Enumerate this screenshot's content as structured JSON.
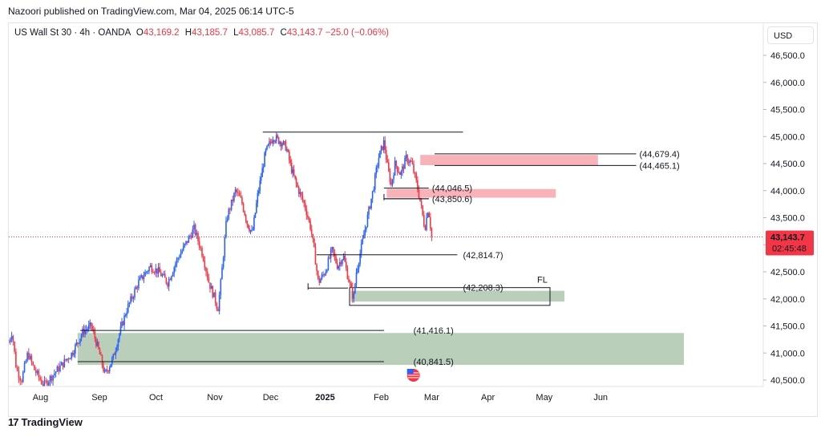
{
  "header": {
    "publisher": "Nazoori published on TradingView.com, Mar 04, 2025 06:14 UTC-5"
  },
  "legend": {
    "symbol": "US Wall St 30 · 4h · OANDA",
    "open_key": "O",
    "open": "43,169.2",
    "high_key": "H",
    "high": "43,185.7",
    "low_key": "L",
    "low": "43,085.7",
    "close_key": "C",
    "close": "43,143.7",
    "change": "−25.0 (−0.06%)"
  },
  "currency": "USD",
  "price_tag": {
    "price": "43,143.7",
    "countdown": "02:45:48",
    "value": 43143.7
  },
  "brand": {
    "name": "TradingView",
    "mark": "17"
  },
  "colors": {
    "up": "#2962ff",
    "down": "#f23645",
    "green_zone": "#a5c2a5",
    "red_zone": "#f7a6ad",
    "price_line": "#f23645"
  },
  "chart_data": {
    "type": "candlestick",
    "y_ticks": [
      {
        "v": 46500,
        "label": "46,500.0"
      },
      {
        "v": 46000,
        "label": "46,000.0"
      },
      {
        "v": 45500,
        "label": "45,500.0"
      },
      {
        "v": 45000,
        "label": "45,000.0"
      },
      {
        "v": 44500,
        "label": "44,500.0"
      },
      {
        "v": 44000,
        "label": "44,000.0"
      },
      {
        "v": 43500,
        "label": "43,500.0"
      },
      {
        "v": 43000,
        "label": "43,000.0"
      },
      {
        "v": 42500,
        "label": "42,500.0"
      },
      {
        "v": 42000,
        "label": "42,000.0"
      },
      {
        "v": 41500,
        "label": "41,500.0"
      },
      {
        "v": 41000,
        "label": "41,000.0"
      },
      {
        "v": 40500,
        "label": "40,500.0"
      }
    ],
    "x_ticks": [
      {
        "t": 0.5,
        "label": "Aug",
        "bold": false
      },
      {
        "t": 1.5,
        "label": "Sep",
        "bold": false
      },
      {
        "t": 2.5,
        "label": "Oct",
        "bold": false
      },
      {
        "t": 3.5,
        "label": "Nov",
        "bold": false
      },
      {
        "t": 4.5,
        "label": "Dec",
        "bold": false
      },
      {
        "t": 5.5,
        "label": "2025",
        "bold": true
      },
      {
        "t": 6.5,
        "label": "Feb",
        "bold": false
      },
      {
        "t": 7.4,
        "label": "Mar",
        "bold": false
      },
      {
        "t": 8.4,
        "label": "Apr",
        "bold": false
      },
      {
        "t": 9.4,
        "label": "May",
        "bold": false
      },
      {
        "t": 10.4,
        "label": "Jun",
        "bold": false
      }
    ],
    "y_range": [
      40450,
      46750
    ],
    "t_range": [
      -0.05,
      11.2
    ],
    "path": [
      [
        0,
        41200
      ],
      [
        0.05,
        41400
      ],
      [
        0.12,
        40700
      ],
      [
        0.2,
        40500
      ],
      [
        0.3,
        41000
      ],
      [
        0.4,
        40700
      ],
      [
        0.55,
        40400
      ],
      [
        0.7,
        40600
      ],
      [
        0.85,
        40800
      ],
      [
        1.0,
        41000
      ],
      [
        1.2,
        41400
      ],
      [
        1.35,
        41500
      ],
      [
        1.5,
        41000
      ],
      [
        1.6,
        40600
      ],
      [
        1.75,
        40900
      ],
      [
        1.85,
        41300
      ],
      [
        2.0,
        41800
      ],
      [
        2.2,
        42300
      ],
      [
        2.4,
        42600
      ],
      [
        2.55,
        42500
      ],
      [
        2.7,
        42300
      ],
      [
        2.85,
        42700
      ],
      [
        3.0,
        43000
      ],
      [
        3.15,
        43300
      ],
      [
        3.3,
        42800
      ],
      [
        3.4,
        42300
      ],
      [
        3.5,
        42000
      ],
      [
        3.55,
        41800
      ],
      [
        3.6,
        42300
      ],
      [
        3.7,
        43500
      ],
      [
        3.85,
        44000
      ],
      [
        3.95,
        43800
      ],
      [
        4.05,
        43400
      ],
      [
        4.15,
        43200
      ],
      [
        4.25,
        43900
      ],
      [
        4.4,
        44700
      ],
      [
        4.55,
        45000
      ],
      [
        4.7,
        44900
      ],
      [
        4.8,
        44800
      ],
      [
        4.9,
        44400
      ],
      [
        5.0,
        44100
      ],
      [
        5.15,
        43700
      ],
      [
        5.25,
        43300
      ],
      [
        5.32,
        42800
      ],
      [
        5.38,
        42300
      ],
      [
        5.5,
        42500
      ],
      [
        5.62,
        42900
      ],
      [
        5.72,
        42600
      ],
      [
        5.82,
        42800
      ],
      [
        5.88,
        42500
      ],
      [
        5.95,
        42200
      ],
      [
        6.0,
        42000
      ],
      [
        6.05,
        42500
      ],
      [
        6.15,
        43000
      ],
      [
        6.25,
        43500
      ],
      [
        6.35,
        44000
      ],
      [
        6.45,
        44600
      ],
      [
        6.55,
        44900
      ],
      [
        6.62,
        44400
      ],
      [
        6.68,
        44100
      ],
      [
        6.75,
        44500
      ],
      [
        6.85,
        44300
      ],
      [
        6.95,
        44600
      ],
      [
        7.05,
        44500
      ],
      [
        7.12,
        44200
      ],
      [
        7.2,
        43800
      ],
      [
        7.28,
        43300
      ],
      [
        7.34,
        43700
      ],
      [
        7.4,
        43150
      ]
    ],
    "horizontal_lines": [
      {
        "t1": 4.35,
        "t2": 7.95,
        "v": 45082
      },
      {
        "t1": 1.15,
        "t2": 6.55,
        "v": 41416.1
      },
      {
        "t1": 1.1,
        "t2": 6.55,
        "v": 40841.5
      },
      {
        "t1": 5.35,
        "t2": 7.85,
        "v": 42814.7
      }
    ],
    "zones": [
      {
        "kind": "green",
        "t1": 1.1,
        "t2": 11.9,
        "v1": 41370,
        "v2": 40780
      },
      {
        "kind": "green",
        "t1": 5.95,
        "t2": 9.75,
        "v1": 42150,
        "v2": 41950
      },
      {
        "kind": "red",
        "t1": 7.2,
        "t2": 10.35,
        "v1": 44660,
        "v2": 44470
      },
      {
        "kind": "red",
        "t1": 6.6,
        "t2": 9.6,
        "v1": 44030,
        "v2": 43870
      }
    ],
    "level_lines": [
      {
        "t1": 7.45,
        "t2": 11.05,
        "v": 44679.4,
        "label": "(44,679.4)"
      },
      {
        "t1": 7.45,
        "t2": 11.05,
        "v": 44465.1,
        "label": "(44,465.1)"
      },
      {
        "t1": 6.55,
        "t2": 7.35,
        "v": 44046.5,
        "label": "(44,046.5)"
      },
      {
        "t1": 6.55,
        "t2": 7.35,
        "v": 43850.6,
        "label": "(43,850.6)"
      }
    ],
    "level_labels": [
      {
        "t": 7.95,
        "v": 42814.7,
        "label": "(42,814.7)"
      },
      {
        "t": 7.95,
        "v": 42208.3,
        "label": "(42,208.3)"
      },
      {
        "t": 7.08,
        "v": 41416.1,
        "label": "(41,416.1)"
      },
      {
        "t": 7.08,
        "v": 40841.5,
        "label": "(40,841.5)"
      }
    ],
    "fl_box": {
      "t1": 5.93,
      "t2": 9.5,
      "v1": 42208.3,
      "v2": 41880,
      "label": "FL"
    },
    "step_lines": [
      {
        "t1": 5.2,
        "t2": 5.9,
        "v": 42200
      },
      {
        "t1": 6.55,
        "t2": 7.35,
        "v": 43850.6
      }
    ]
  }
}
